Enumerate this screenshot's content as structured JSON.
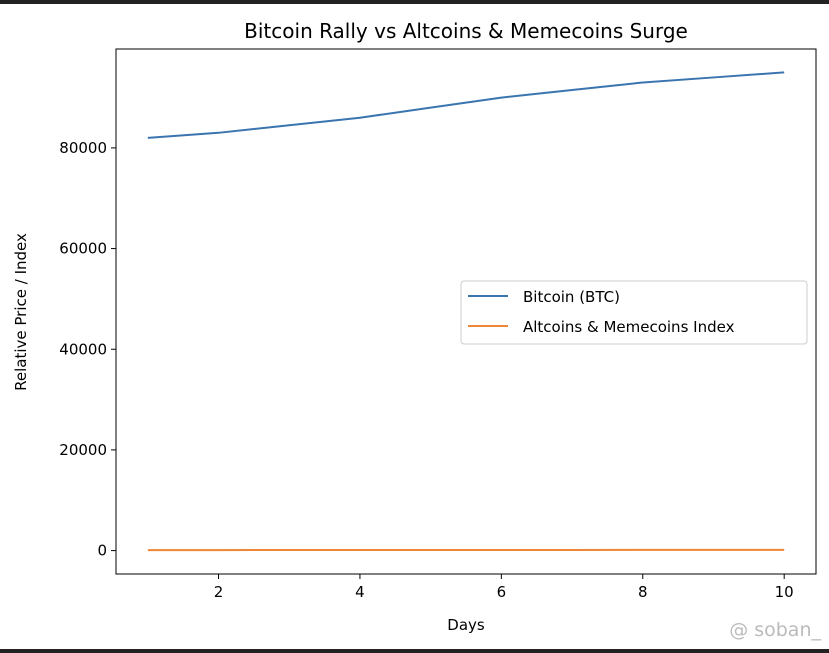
{
  "chart_data": {
    "type": "line",
    "title": "Bitcoin Rally vs Altcoins & Memecoins Surge",
    "xlabel": "Days",
    "ylabel": "Relative Price / Index",
    "x": [
      1,
      2,
      3,
      4,
      5,
      6,
      7,
      8,
      9,
      10
    ],
    "series": [
      {
        "name": "Bitcoin (BTC)",
        "color": "#3b75af",
        "values": [
          82000,
          83000,
          84500,
          86000,
          88000,
          90000,
          91500,
          93000,
          94000,
          95000
        ]
      },
      {
        "name": "Altcoins & Memecoins Index",
        "color": "#ef8636",
        "values": [
          100,
          105,
          110,
          115,
          120,
          125,
          130,
          140,
          145,
          150
        ]
      }
    ],
    "xlim": [
      0.55,
      10.45
    ],
    "ylim": [
      -4650,
      99650
    ],
    "xticks": [
      2,
      4,
      6,
      8,
      10
    ],
    "yticks": [
      0,
      20000,
      40000,
      60000,
      80000
    ],
    "grid": false,
    "legend_position": "center-right"
  },
  "watermark": "@ soban_"
}
